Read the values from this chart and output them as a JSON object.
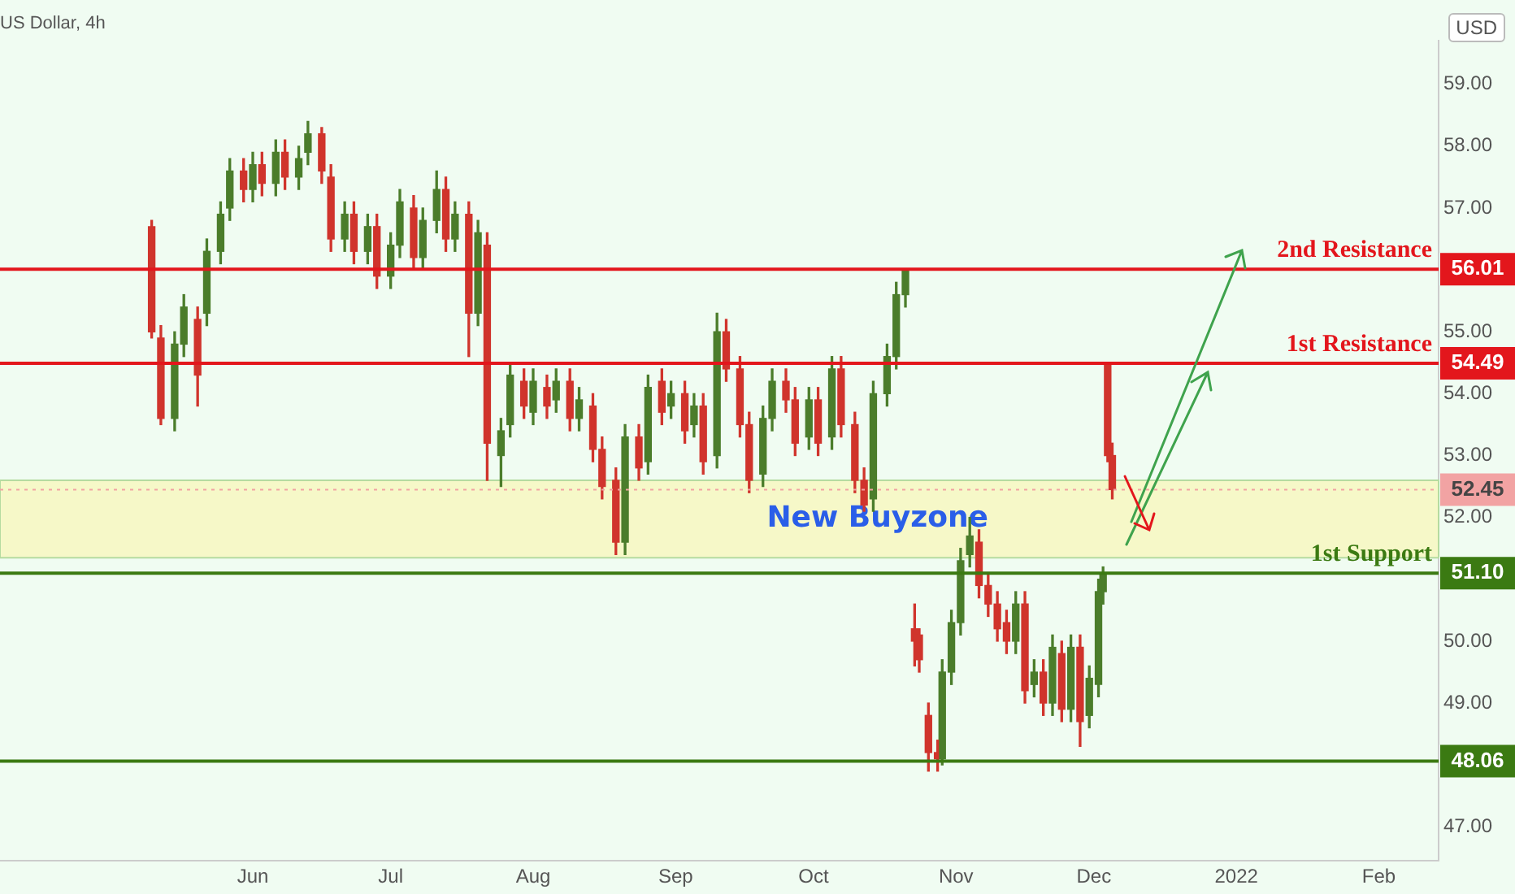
{
  "chart_data": {
    "type": "candlestick",
    "title": "US Dollar, 4h",
    "ylabel": "USD",
    "x": [
      "2021-05-10",
      "2021-05-12",
      "2021-05-15",
      "2021-05-17",
      "2021-05-20",
      "2021-05-22",
      "2021-05-25",
      "2021-05-27",
      "2021-05-30",
      "2021-06-01",
      "2021-06-03",
      "2021-06-06",
      "2021-06-08",
      "2021-06-11",
      "2021-06-13",
      "2021-06-16",
      "2021-06-18",
      "2021-06-21",
      "2021-06-23",
      "2021-06-26",
      "2021-06-28",
      "2021-07-01",
      "2021-07-03",
      "2021-07-06",
      "2021-07-08",
      "2021-07-11",
      "2021-07-13",
      "2021-07-15",
      "2021-07-18",
      "2021-07-20",
      "2021-07-22",
      "2021-07-25",
      "2021-07-27",
      "2021-07-30",
      "2021-08-01",
      "2021-08-04",
      "2021-08-06",
      "2021-08-09",
      "2021-08-11",
      "2021-08-14",
      "2021-08-16",
      "2021-08-19",
      "2021-08-21",
      "2021-08-24",
      "2021-08-26",
      "2021-08-29",
      "2021-08-31",
      "2021-09-03",
      "2021-09-05",
      "2021-09-07",
      "2021-09-10",
      "2021-09-12",
      "2021-09-15",
      "2021-09-17",
      "2021-09-20",
      "2021-09-22",
      "2021-09-25",
      "2021-09-27",
      "2021-09-30",
      "2021-10-02",
      "2021-10-05",
      "2021-10-07",
      "2021-10-10",
      "2021-10-12",
      "2021-10-14",
      "2021-10-17",
      "2021-10-19",
      "2021-10-21",
      "2021-10-23",
      "2021-10-24",
      "2021-10-26",
      "2021-10-28",
      "2021-10-29",
      "2021-10-31",
      "2021-11-02",
      "2021-11-04",
      "2021-11-06",
      "2021-11-08",
      "2021-11-10",
      "2021-11-12",
      "2021-11-14",
      "2021-11-16",
      "2021-11-18",
      "2021-11-20",
      "2021-11-22",
      "2021-11-24",
      "2021-11-26",
      "2021-11-28",
      "2021-11-30",
      "2021-12-02",
      "2021-12-03",
      "2021-12-04",
      "2021-12-05"
    ],
    "ohlc": [
      [
        56.7,
        56.8,
        54.9,
        55.0
      ],
      [
        54.9,
        55.1,
        53.5,
        53.6
      ],
      [
        53.6,
        55.0,
        53.4,
        54.8
      ],
      [
        54.8,
        55.6,
        54.6,
        55.4
      ],
      [
        55.2,
        55.4,
        53.8,
        54.3
      ],
      [
        55.3,
        56.5,
        55.1,
        56.3
      ],
      [
        56.3,
        57.1,
        56.1,
        56.9
      ],
      [
        57.0,
        57.8,
        56.8,
        57.6
      ],
      [
        57.6,
        57.8,
        57.1,
        57.3
      ],
      [
        57.3,
        57.9,
        57.1,
        57.7
      ],
      [
        57.7,
        57.9,
        57.2,
        57.4
      ],
      [
        57.4,
        58.1,
        57.2,
        57.9
      ],
      [
        57.9,
        58.1,
        57.3,
        57.5
      ],
      [
        57.5,
        58.0,
        57.3,
        57.8
      ],
      [
        57.9,
        58.4,
        57.7,
        58.2
      ],
      [
        58.2,
        58.3,
        57.4,
        57.6
      ],
      [
        57.5,
        57.7,
        56.3,
        56.5
      ],
      [
        56.5,
        57.1,
        56.3,
        56.9
      ],
      [
        56.9,
        57.1,
        56.1,
        56.3
      ],
      [
        56.3,
        56.9,
        56.1,
        56.7
      ],
      [
        56.7,
        56.9,
        55.7,
        55.9
      ],
      [
        55.9,
        56.6,
        55.7,
        56.4
      ],
      [
        56.4,
        57.3,
        56.2,
        57.1
      ],
      [
        57.0,
        57.2,
        56.0,
        56.2
      ],
      [
        56.2,
        57.0,
        56.0,
        56.8
      ],
      [
        56.8,
        57.6,
        56.6,
        57.3
      ],
      [
        57.3,
        57.5,
        56.3,
        56.5
      ],
      [
        56.5,
        57.1,
        56.3,
        56.9
      ],
      [
        56.9,
        57.1,
        54.6,
        55.3
      ],
      [
        55.3,
        56.8,
        55.1,
        56.6
      ],
      [
        56.4,
        56.6,
        52.6,
        53.2
      ],
      [
        53.0,
        53.6,
        52.5,
        53.4
      ],
      [
        53.5,
        54.5,
        53.3,
        54.3
      ],
      [
        54.2,
        54.4,
        53.6,
        53.8
      ],
      [
        53.7,
        54.4,
        53.5,
        54.2
      ],
      [
        54.1,
        54.3,
        53.6,
        53.8
      ],
      [
        53.9,
        54.4,
        53.7,
        54.2
      ],
      [
        54.2,
        54.4,
        53.4,
        53.6
      ],
      [
        53.6,
        54.1,
        53.4,
        53.9
      ],
      [
        53.8,
        54.0,
        52.9,
        53.1
      ],
      [
        53.1,
        53.3,
        52.3,
        52.5
      ],
      [
        52.6,
        52.8,
        51.4,
        51.6
      ],
      [
        51.6,
        53.5,
        51.4,
        53.3
      ],
      [
        53.3,
        53.5,
        52.6,
        52.8
      ],
      [
        52.9,
        54.3,
        52.7,
        54.1
      ],
      [
        54.2,
        54.4,
        53.5,
        53.7
      ],
      [
        53.8,
        54.2,
        53.6,
        54.0
      ],
      [
        54.0,
        54.2,
        53.2,
        53.4
      ],
      [
        53.5,
        54.0,
        53.3,
        53.8
      ],
      [
        53.8,
        54.0,
        52.7,
        52.9
      ],
      [
        53.0,
        55.3,
        52.8,
        55.0
      ],
      [
        55.0,
        55.2,
        54.2,
        54.4
      ],
      [
        54.4,
        54.6,
        53.3,
        53.5
      ],
      [
        53.5,
        53.7,
        52.4,
        52.6
      ],
      [
        52.7,
        53.8,
        52.5,
        53.6
      ],
      [
        53.6,
        54.4,
        53.4,
        54.2
      ],
      [
        54.2,
        54.4,
        53.7,
        53.9
      ],
      [
        53.9,
        54.1,
        53.0,
        53.2
      ],
      [
        53.3,
        54.1,
        53.1,
        53.9
      ],
      [
        53.9,
        54.1,
        53.0,
        53.2
      ],
      [
        53.3,
        54.6,
        53.1,
        54.4
      ],
      [
        54.4,
        54.6,
        53.3,
        53.5
      ],
      [
        53.5,
        53.7,
        52.4,
        52.6
      ],
      [
        52.6,
        52.8,
        52.1,
        52.2
      ],
      [
        52.3,
        54.2,
        52.1,
        54.0
      ],
      [
        54.0,
        54.8,
        53.8,
        54.6
      ],
      [
        54.6,
        55.8,
        54.4,
        55.6
      ],
      [
        55.6,
        56.01,
        55.4,
        56.01
      ],
      [
        50.2,
        50.6,
        49.6,
        50.0
      ],
      [
        50.1,
        50.2,
        49.5,
        49.7
      ],
      [
        48.8,
        49.0,
        47.9,
        48.2
      ],
      [
        48.2,
        48.4,
        47.9,
        48.1
      ],
      [
        48.1,
        49.7,
        48.0,
        49.5
      ],
      [
        49.5,
        50.5,
        49.3,
        50.3
      ],
      [
        50.3,
        51.5,
        50.1,
        51.3
      ],
      [
        51.4,
        52.0,
        51.2,
        51.7
      ],
      [
        51.6,
        51.8,
        50.7,
        50.9
      ],
      [
        50.9,
        51.1,
        50.4,
        50.6
      ],
      [
        50.6,
        50.8,
        50.0,
        50.2
      ],
      [
        50.3,
        50.5,
        49.8,
        50.0
      ],
      [
        50.0,
        50.8,
        49.8,
        50.6
      ],
      [
        50.6,
        50.8,
        49.0,
        49.2
      ],
      [
        49.3,
        49.7,
        49.1,
        49.5
      ],
      [
        49.5,
        49.7,
        48.8,
        49.0
      ],
      [
        49.0,
        50.1,
        48.8,
        49.9
      ],
      [
        49.8,
        50.0,
        48.7,
        48.9
      ],
      [
        48.9,
        50.1,
        48.7,
        49.9
      ],
      [
        49.9,
        50.1,
        48.3,
        48.7
      ],
      [
        48.8,
        49.6,
        48.6,
        49.4
      ],
      [
        49.3,
        51.0,
        49.1,
        50.8
      ],
      [
        50.8,
        51.2,
        50.6,
        51.1
      ],
      [
        54.49,
        54.49,
        52.9,
        53.0
      ],
      [
        53.0,
        53.2,
        52.3,
        52.45
      ]
    ],
    "xlim": [
      "2021-04-07",
      "2022-02-14"
    ],
    "xticks": [
      {
        "value": "2021-06-01",
        "label": "Jun"
      },
      {
        "value": "2021-07-01",
        "label": "Jul"
      },
      {
        "value": "2021-08-01",
        "label": "Aug"
      },
      {
        "value": "2021-09-01",
        "label": "Sep"
      },
      {
        "value": "2021-10-01",
        "label": "Oct"
      },
      {
        "value": "2021-11-01",
        "label": "Nov"
      },
      {
        "value": "2021-12-01",
        "label": "Dec"
      },
      {
        "value": "2022-01-01",
        "label": "2022"
      },
      {
        "value": "2022-02-01",
        "label": "Feb"
      }
    ],
    "ylim": [
      46.45,
      59.7
    ],
    "yticks": [
      {
        "value": 47,
        "label": "47.00"
      },
      {
        "value": 49,
        "label": "49.00"
      },
      {
        "value": 50,
        "label": "50.00"
      },
      {
        "value": 52,
        "label": "52.00"
      },
      {
        "value": 53,
        "label": "53.00"
      },
      {
        "value": 54,
        "label": "54.00"
      },
      {
        "value": 55,
        "label": "55.00"
      },
      {
        "value": 57,
        "label": "57.00"
      },
      {
        "value": 58,
        "label": "58.00"
      },
      {
        "value": 59,
        "label": "59.00"
      }
    ],
    "ref_lines": [
      {
        "axis": "y",
        "value": 56.01,
        "label": "2nd Resistance",
        "color": "#e3161c"
      },
      {
        "axis": "y",
        "value": 54.49,
        "label": "1st Resistance",
        "color": "#e3161c"
      },
      {
        "axis": "y",
        "value": 52.45,
        "color": "#f2a3a3",
        "line_style": "dotted"
      },
      {
        "axis": "y",
        "value": 51.1,
        "label": "1st Support",
        "color": "#3b7a12"
      },
      {
        "axis": "y",
        "value": 48.06,
        "color": "#3b7a12"
      }
    ],
    "bands": [
      {
        "axis": "y",
        "from": 51.35,
        "to": 52.6,
        "label": "New Buyzone",
        "color": "#f6f8c8"
      }
    ],
    "annotations": [
      "56.01",
      "54.49",
      "52.45",
      "51.10",
      "48.06"
    ],
    "grid": false,
    "legend": false
  }
}
